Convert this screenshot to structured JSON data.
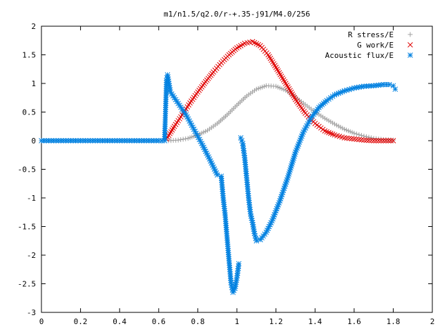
{
  "chart_data": {
    "type": "scatter",
    "title": "m1/n1.5/q2.0/r-+.35-j91/M4.0/256",
    "xlabel": "",
    "ylabel": "",
    "xlim": [
      0,
      2
    ],
    "ylim": [
      -3,
      2
    ],
    "x_ticks": [
      "0",
      "0.2",
      "0.4",
      "0.6",
      "0.8",
      "1",
      "1.2",
      "1.4",
      "1.6",
      "1.8",
      "2"
    ],
    "y_ticks": [
      "2",
      "1.5",
      "1",
      "0.5",
      "0",
      "-0.5",
      "-1",
      "-1.5",
      "-2",
      "-2.5",
      "-3"
    ],
    "x_tick_values": [
      0,
      0.2,
      0.4,
      0.6,
      0.8,
      1.0,
      1.2,
      1.4,
      1.6,
      1.8,
      2.0
    ],
    "y_tick_values": [
      2,
      1.5,
      1,
      0.5,
      0,
      -0.5,
      -1,
      -1.5,
      -2,
      -2.5,
      -3
    ],
    "grid": false,
    "legend_position": "top-right",
    "series": [
      {
        "name": "R stress/E",
        "marker": "plus",
        "color": "#a0a0a0",
        "x": [
          0.65,
          0.7,
          0.75,
          0.8,
          0.85,
          0.9,
          0.95,
          1.0,
          1.05,
          1.1,
          1.15,
          1.2,
          1.25,
          1.3,
          1.35,
          1.4,
          1.45,
          1.5,
          1.55,
          1.6,
          1.65,
          1.7,
          1.75,
          1.8
        ],
        "y": [
          0.0,
          0.01,
          0.04,
          0.1,
          0.18,
          0.3,
          0.45,
          0.62,
          0.78,
          0.9,
          0.96,
          0.95,
          0.88,
          0.76,
          0.63,
          0.5,
          0.39,
          0.29,
          0.2,
          0.13,
          0.08,
          0.04,
          0.02,
          0.01
        ]
      },
      {
        "name": "G work/E",
        "marker": "cross",
        "color": "#e00000",
        "x": [
          0.64,
          0.68,
          0.72,
          0.76,
          0.8,
          0.84,
          0.88,
          0.92,
          0.96,
          1.0,
          1.04,
          1.08,
          1.12,
          1.16,
          1.2,
          1.25,
          1.3,
          1.35,
          1.4,
          1.45,
          1.5,
          1.55,
          1.6,
          1.65,
          1.7,
          1.75,
          1.8
        ],
        "y": [
          0.03,
          0.25,
          0.45,
          0.66,
          0.85,
          1.03,
          1.2,
          1.36,
          1.5,
          1.62,
          1.7,
          1.73,
          1.66,
          1.5,
          1.28,
          1.0,
          0.72,
          0.48,
          0.3,
          0.17,
          0.1,
          0.05,
          0.03,
          0.01,
          0.0,
          0.0,
          0.0
        ]
      },
      {
        "name": "Acoustic flux/E",
        "marker": "star",
        "color": "#0080e0",
        "x": [
          0.0,
          0.05,
          0.1,
          0.15,
          0.2,
          0.25,
          0.3,
          0.35,
          0.4,
          0.45,
          0.5,
          0.55,
          0.6,
          0.63,
          0.64,
          0.645,
          0.66,
          0.7,
          0.74,
          0.78,
          0.82,
          0.86,
          0.9,
          0.92,
          0.93,
          0.94,
          0.95,
          0.96,
          0.97,
          0.98,
          0.99,
          1.0,
          1.01,
          1.02,
          1.03,
          1.04,
          1.05,
          1.06,
          1.07,
          1.08,
          1.09,
          1.1,
          1.12,
          1.15,
          1.18,
          1.22,
          1.26,
          1.3,
          1.34,
          1.38,
          1.42,
          1.46,
          1.5,
          1.55,
          1.6,
          1.65,
          1.7,
          1.75,
          1.78,
          1.8,
          1.81
        ],
        "y": [
          0,
          0,
          0,
          0,
          0,
          0,
          0,
          0,
          0,
          0,
          0,
          0,
          0,
          0,
          1.05,
          1.15,
          0.85,
          0.65,
          0.45,
          0.2,
          -0.05,
          -0.32,
          -0.6,
          -0.62,
          -1.0,
          -1.3,
          -1.7,
          -2.1,
          -2.48,
          -2.65,
          -2.58,
          -2.4,
          -2.15,
          0.05,
          -0.05,
          -0.3,
          -0.65,
          -1.0,
          -1.28,
          -1.43,
          -1.62,
          -1.75,
          -1.73,
          -1.6,
          -1.4,
          -1.05,
          -0.65,
          -0.2,
          0.15,
          0.4,
          0.58,
          0.7,
          0.8,
          0.87,
          0.92,
          0.95,
          0.96,
          0.98,
          0.98,
          0.96,
          0.9
        ]
      }
    ]
  }
}
